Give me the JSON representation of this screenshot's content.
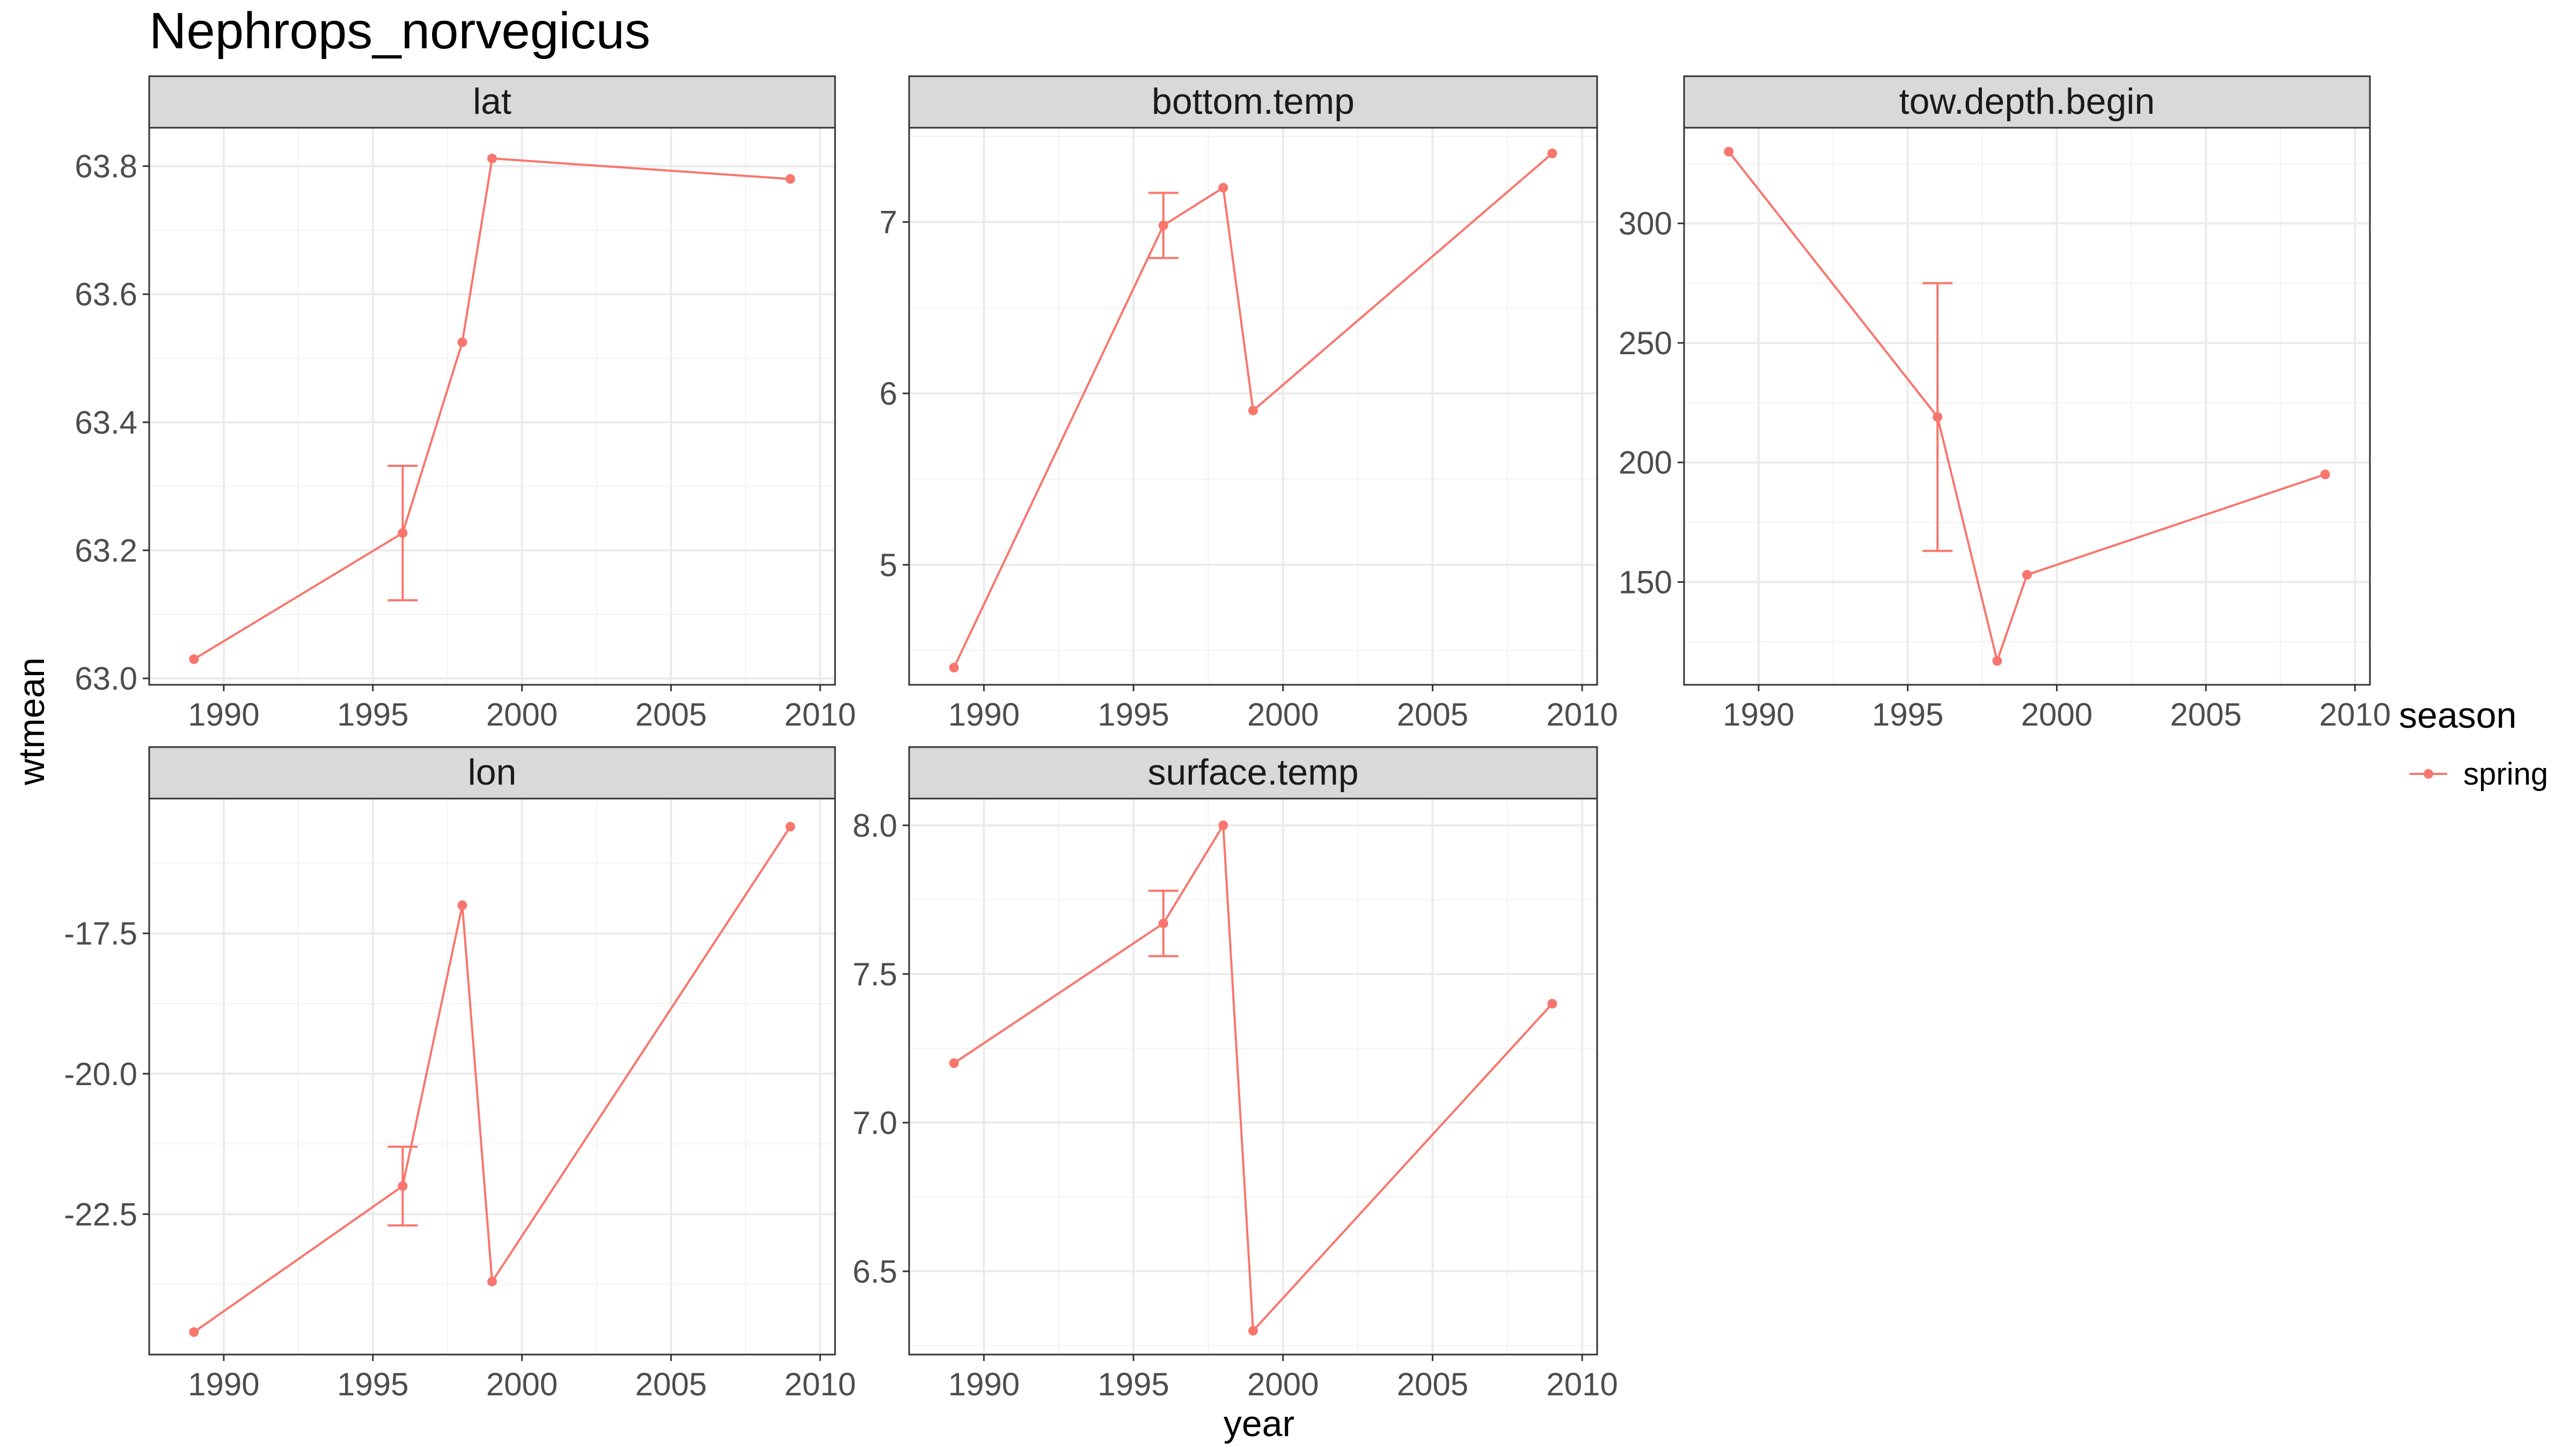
{
  "title": "Nephrops_norvegicus",
  "xlabel": "year",
  "ylabel": "wtmean",
  "legend": {
    "title": "season",
    "items": [
      {
        "label": "spring",
        "color": "#F8766D"
      }
    ]
  },
  "series_color": "#F8766D",
  "chart_data": [
    {
      "type": "line",
      "facet": "lat",
      "xlim": [
        1987.5,
        2010.5
      ],
      "ylim": [
        62.99,
        63.86
      ],
      "xticks": [
        1990,
        1995,
        2000,
        2005,
        2010
      ],
      "yticks": [
        63.0,
        63.2,
        63.4,
        63.6,
        63.8
      ],
      "ytick_labels": [
        "63.0",
        "63.2",
        "63.4",
        "63.6",
        "63.8"
      ],
      "series": [
        {
          "name": "spring",
          "points": [
            {
              "x": 1989,
              "y": 63.03
            },
            {
              "x": 1996,
              "y": 63.227
            },
            {
              "x": 1998,
              "y": 63.525
            },
            {
              "x": 1999,
              "y": 63.812
            },
            {
              "x": 2009,
              "y": 63.78
            }
          ],
          "errorbars": [
            {
              "x": 1996,
              "ymin": 63.122,
              "ymax": 63.332
            }
          ]
        }
      ]
    },
    {
      "type": "line",
      "facet": "bottom.temp",
      "xlim": [
        1987.5,
        2010.5
      ],
      "ylim": [
        4.3,
        7.55
      ],
      "xticks": [
        1990,
        1995,
        2000,
        2005,
        2010
      ],
      "yticks": [
        5,
        6,
        7
      ],
      "ytick_labels": [
        "5",
        "6",
        "7"
      ],
      "series": [
        {
          "name": "spring",
          "points": [
            {
              "x": 1989,
              "y": 4.4
            },
            {
              "x": 1996,
              "y": 6.98
            },
            {
              "x": 1998,
              "y": 7.2
            },
            {
              "x": 1999,
              "y": 5.9
            },
            {
              "x": 2009,
              "y": 7.4
            }
          ],
          "errorbars": [
            {
              "x": 1996,
              "ymin": 6.79,
              "ymax": 7.17
            }
          ]
        }
      ]
    },
    {
      "type": "line",
      "facet": "tow.depth.begin",
      "xlim": [
        1987.5,
        2010.5
      ],
      "ylim": [
        107,
        340
      ],
      "xticks": [
        1990,
        1995,
        2000,
        2005,
        2010
      ],
      "yticks": [
        150,
        200,
        250,
        300
      ],
      "ytick_labels": [
        "150",
        "200",
        "250",
        "300"
      ],
      "series": [
        {
          "name": "spring",
          "points": [
            {
              "x": 1989,
              "y": 330
            },
            {
              "x": 1996,
              "y": 219
            },
            {
              "x": 1998,
              "y": 117
            },
            {
              "x": 1999,
              "y": 153
            },
            {
              "x": 2009,
              "y": 195
            }
          ],
          "errorbars": [
            {
              "x": 1996,
              "ymin": 163,
              "ymax": 275
            }
          ]
        }
      ]
    },
    {
      "type": "line",
      "facet": "lon",
      "xlim": [
        1987.5,
        2010.5
      ],
      "ylim": [
        -25.0,
        -15.1
      ],
      "xticks": [
        1990,
        1995,
        2000,
        2005,
        2010
      ],
      "yticks": [
        -22.5,
        -20.0,
        -17.5
      ],
      "ytick_labels": [
        "-22.5",
        "-20.0",
        "-17.5"
      ],
      "series": [
        {
          "name": "spring",
          "points": [
            {
              "x": 1989,
              "y": -24.6
            },
            {
              "x": 1996,
              "y": -22.0
            },
            {
              "x": 1998,
              "y": -17.0
            },
            {
              "x": 1999,
              "y": -23.7
            },
            {
              "x": 2009,
              "y": -15.6
            }
          ],
          "errorbars": [
            {
              "x": 1996,
              "ymin": -22.7,
              "ymax": -21.3
            }
          ]
        }
      ]
    },
    {
      "type": "line",
      "facet": "surface.temp",
      "xlim": [
        1987.5,
        2010.5
      ],
      "ylim": [
        6.22,
        8.09
      ],
      "xticks": [
        1990,
        1995,
        2000,
        2005,
        2010
      ],
      "yticks": [
        6.5,
        7.0,
        7.5,
        8.0
      ],
      "ytick_labels": [
        "6.5",
        "7.0",
        "7.5",
        "8.0"
      ],
      "series": [
        {
          "name": "spring",
          "points": [
            {
              "x": 1989,
              "y": 7.2
            },
            {
              "x": 1996,
              "y": 7.67
            },
            {
              "x": 1998,
              "y": 8.0
            },
            {
              "x": 1999,
              "y": 6.3
            },
            {
              "x": 2009,
              "y": 7.4
            }
          ],
          "errorbars": [
            {
              "x": 1996,
              "ymin": 7.56,
              "ymax": 7.78
            }
          ]
        }
      ]
    }
  ]
}
